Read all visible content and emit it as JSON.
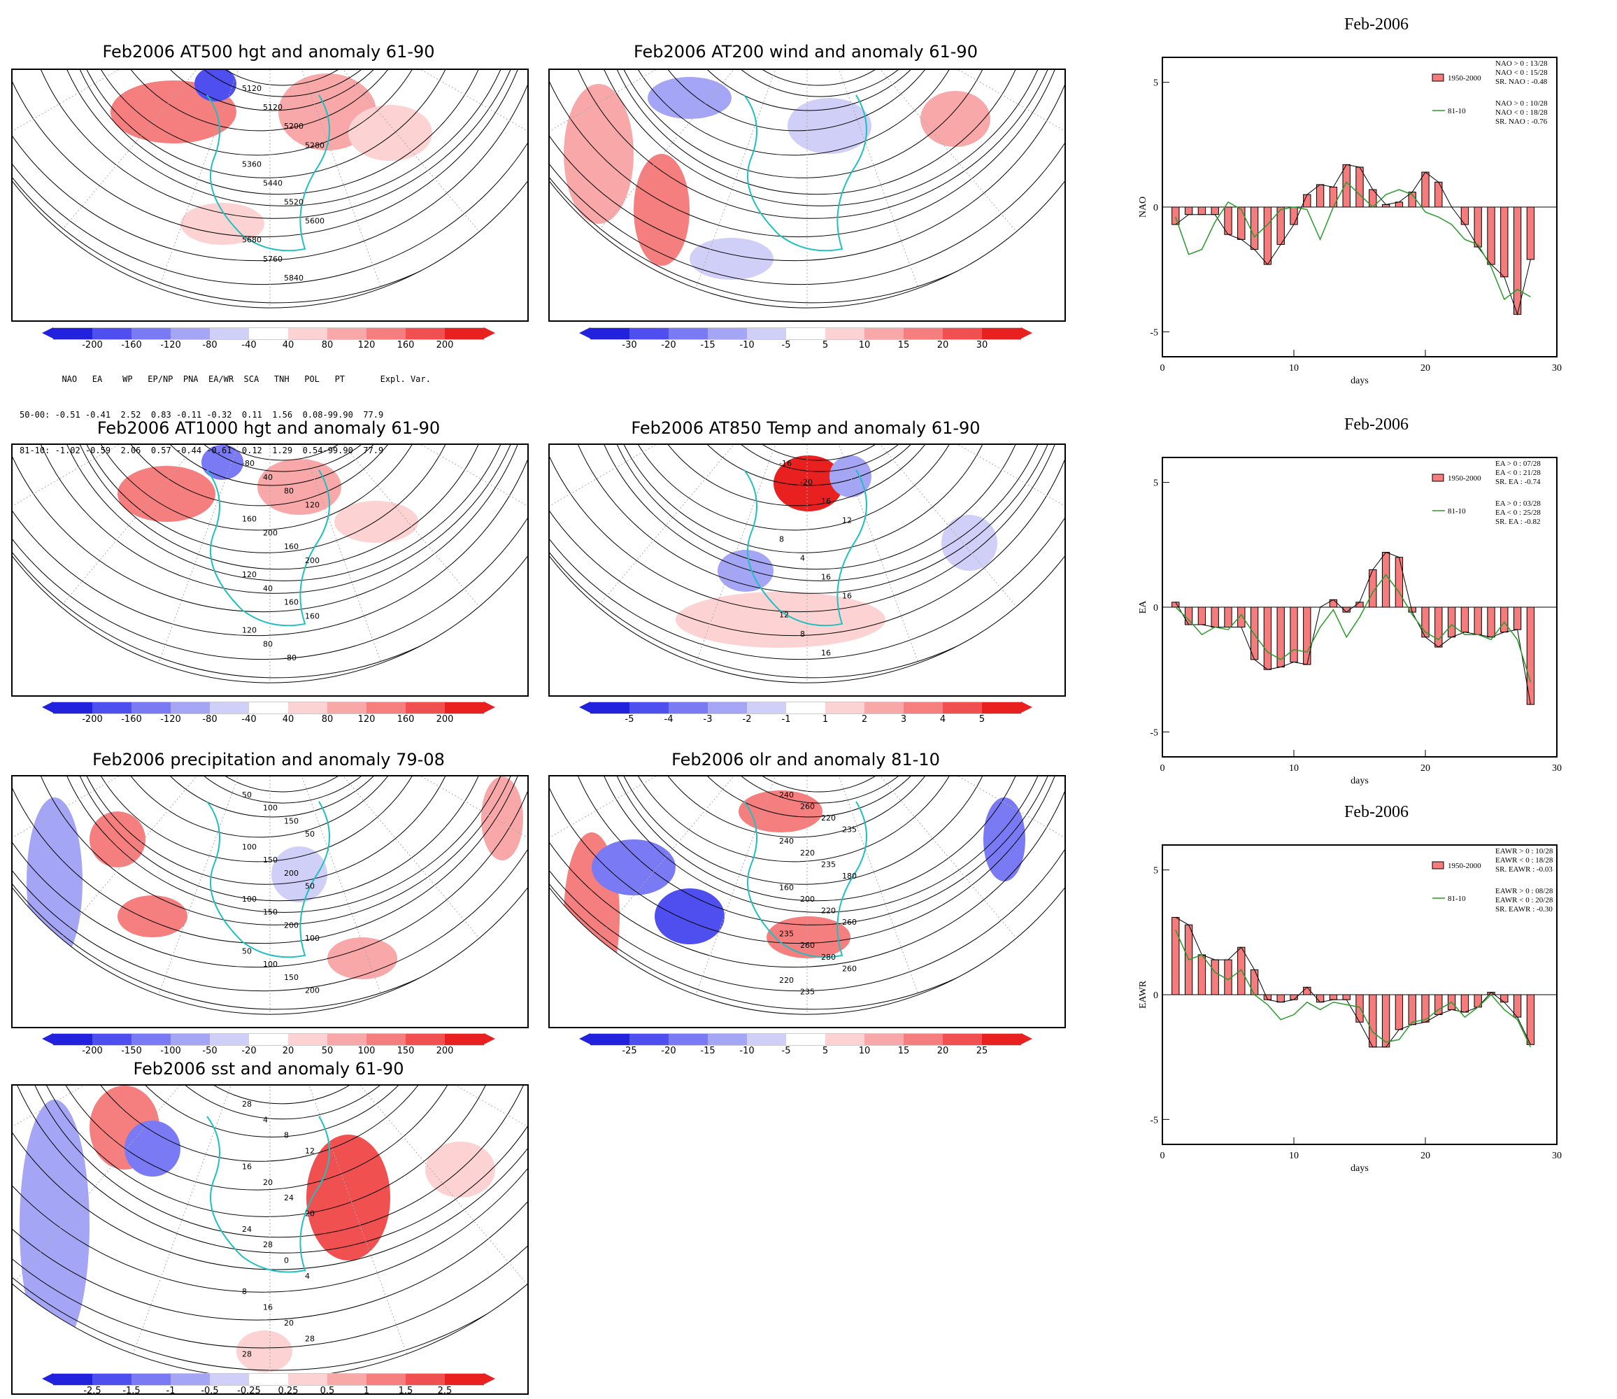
{
  "maps": [
    {
      "title": "Feb2006 AT500 hgt and anomaly 61-90",
      "contour_labels": [
        "5120",
        "5120",
        "5200",
        "5280",
        "5360",
        "5440",
        "5520",
        "5600",
        "5680",
        "5760",
        "5840"
      ],
      "colorbar": {
        "labels": [
          "-200",
          "-160",
          "-120",
          "-80",
          "-40",
          "40",
          "80",
          "120",
          "160",
          "200"
        ],
        "colors": [
          "#2222dd",
          "#4f4ff0",
          "#7a7af5",
          "#a5a5f5",
          "#cfcff8",
          "#ffffff",
          "#fcd2d2",
          "#f8a8a8",
          "#f57e7e",
          "#f05050",
          "#e82020"
        ]
      }
    },
    {
      "title": "Feb2006 AT200 wind and anomaly 61-90",
      "contour_labels": [],
      "colorbar": {
        "labels": [
          "-30",
          "-20",
          "-15",
          "-10",
          "-5",
          "5",
          "10",
          "15",
          "20",
          "30"
        ],
        "colors": [
          "#2222dd",
          "#4f4ff0",
          "#7a7af5",
          "#a5a5f5",
          "#cfcff8",
          "#ffffff",
          "#fcd2d2",
          "#f8a8a8",
          "#f57e7e",
          "#f05050",
          "#e82020"
        ]
      }
    },
    {
      "title": "Feb2006 AT1000 hgt and anomaly 61-90",
      "contour_labels": [
        "-80",
        "40",
        "80",
        "120",
        "160",
        "200",
        "160",
        "200",
        "120",
        "40",
        "160",
        "160",
        "120",
        "80",
        "-80"
      ],
      "colorbar": {
        "labels": [
          "-200",
          "-160",
          "-120",
          "-80",
          "-40",
          "40",
          "80",
          "120",
          "160",
          "200"
        ],
        "colors": [
          "#2222dd",
          "#4f4ff0",
          "#7a7af5",
          "#a5a5f5",
          "#cfcff8",
          "#ffffff",
          "#fcd2d2",
          "#f8a8a8",
          "#f57e7e",
          "#f05050",
          "#e82020"
        ]
      }
    },
    {
      "title": "Feb2006 AT850 Temp and anomaly 61-90",
      "contour_labels": [
        "-16",
        "-20",
        "16",
        "12",
        "8",
        "4",
        "16",
        "16",
        "12",
        "8",
        "16"
      ],
      "colorbar": {
        "labels": [
          "-5",
          "-4",
          "-3",
          "-2",
          "-1",
          "1",
          "2",
          "3",
          "4",
          "5"
        ],
        "colors": [
          "#2222dd",
          "#4f4ff0",
          "#7a7af5",
          "#a5a5f5",
          "#cfcff8",
          "#ffffff",
          "#fcd2d2",
          "#f8a8a8",
          "#f57e7e",
          "#f05050",
          "#e82020"
        ]
      }
    },
    {
      "title": "Feb2006 precipitation and anomaly 79-08",
      "contour_labels": [
        "50",
        "100",
        "150",
        "50",
        "100",
        "150",
        "200",
        "50",
        "100",
        "150",
        "200",
        "100",
        "50",
        "100",
        "150",
        "200"
      ],
      "colorbar": {
        "labels": [
          "-200",
          "-150",
          "-100",
          "-50",
          "-20",
          "20",
          "50",
          "100",
          "150",
          "200"
        ],
        "colors": [
          "#2222dd",
          "#4f4ff0",
          "#7a7af5",
          "#a5a5f5",
          "#cfcff8",
          "#ffffff",
          "#fcd2d2",
          "#f8a8a8",
          "#f57e7e",
          "#f05050",
          "#e82020"
        ]
      }
    },
    {
      "title": "Feb2006 olr and anomaly 81-10",
      "contour_labels": [
        "240",
        "260",
        "220",
        "235",
        "240",
        "220",
        "235",
        "180",
        "160",
        "200",
        "220",
        "260",
        "235",
        "260",
        "280",
        "260",
        "220",
        "235"
      ],
      "colorbar": {
        "labels": [
          "-25",
          "-20",
          "-15",
          "-10",
          "-5",
          "5",
          "10",
          "15",
          "20",
          "25"
        ],
        "colors": [
          "#2222dd",
          "#4f4ff0",
          "#7a7af5",
          "#a5a5f5",
          "#cfcff8",
          "#ffffff",
          "#fcd2d2",
          "#f8a8a8",
          "#f57e7e",
          "#f05050",
          "#e82020"
        ]
      }
    },
    {
      "title": "Feb2006 sst and anomaly 61-90",
      "contour_labels": [
        "28",
        "4",
        "8",
        "12",
        "16",
        "20",
        "24",
        "20",
        "24",
        "28",
        "0",
        "4",
        "8",
        "16",
        "20",
        "28",
        "28"
      ],
      "colorbar": {
        "labels": [
          "-2.5",
          "-1.5",
          "-1",
          "-0.5",
          "-0.25",
          "0.25",
          "0.5",
          "1",
          "1.5",
          "2.5"
        ],
        "colors": [
          "#2222dd",
          "#4f4ff0",
          "#7a7af5",
          "#a5a5f5",
          "#cfcff8",
          "#ffffff",
          "#fcd2d2",
          "#f8a8a8",
          "#f57e7e",
          "#f05050",
          "#e82020"
        ]
      }
    }
  ],
  "index_table": {
    "header": "  NAO   EA    WP   EP/NP  PNA  EA/WR  SCA   TNH   POL   PT       Expl. Var.",
    "rows": [
      "50-00: -0.51 -0.41  2.52  0.83 -0.11 -0.32  0.11  1.56  0.08-99.90  77.9",
      "81-10: -1.02 -0.59  2.06  0.57 -0.44 -0.61  0.12  1.29  0.54-99.90  77.9"
    ]
  },
  "chart_data": [
    {
      "type": "bar",
      "title": "Feb-2006",
      "xlabel": "days",
      "ylabel": "NAO",
      "xlim": [
        0,
        30
      ],
      "ylim": [
        -6,
        6
      ],
      "xticks": [
        "0",
        "10",
        "20",
        "30"
      ],
      "yticks": [
        "5",
        "0",
        "-5"
      ],
      "legend": [
        "NAO > 0 : 13/28",
        "NAO < 0 : 15/28",
        "SR. NAO : -0.48",
        "NAO > 0 : 10/28",
        "NAO < 0 : 18/28",
        "SR. NAO : -0.76"
      ],
      "series": [
        {
          "name": "1950-2000",
          "color": "#f47c7c",
          "x": [
            1,
            2,
            3,
            4,
            5,
            6,
            7,
            8,
            9,
            10,
            11,
            12,
            13,
            14,
            15,
            16,
            17,
            18,
            19,
            20,
            21,
            22,
            23,
            24,
            25,
            26,
            27,
            28
          ],
          "values": [
            -0.7,
            -0.3,
            -0.3,
            -0.3,
            -1.1,
            -1.3,
            -1.7,
            -2.3,
            -1.5,
            -0.7,
            0.5,
            0.9,
            0.8,
            1.7,
            1.6,
            0.7,
            0.1,
            0.2,
            0.6,
            1.4,
            1.0,
            0.0,
            -0.7,
            -1.6,
            -2.3,
            -2.8,
            -4.3,
            -2.1
          ]
        },
        {
          "name": "81-10",
          "color": "#2a9a2a",
          "x": [
            1,
            2,
            3,
            4,
            5,
            6,
            7,
            8,
            9,
            10,
            11,
            12,
            13,
            14,
            15,
            16,
            17,
            18,
            19,
            20,
            21,
            22,
            23,
            24,
            25,
            26,
            27,
            28
          ],
          "values": [
            -0.4,
            -1.9,
            -1.7,
            -0.6,
            0.2,
            -0.1,
            -1.2,
            -0.7,
            -0.1,
            0.0,
            -0.1,
            -1.3,
            0.0,
            1.0,
            0.5,
            0.0,
            0.5,
            0.7,
            0.5,
            -0.2,
            -0.4,
            -0.7,
            -1.3,
            -1.5,
            -2.4,
            -3.7,
            -3.3,
            -3.6
          ]
        }
      ]
    },
    {
      "type": "bar",
      "title": "Feb-2006",
      "xlabel": "days",
      "ylabel": "EA",
      "xlim": [
        0,
        30
      ],
      "ylim": [
        -6,
        6
      ],
      "xticks": [
        "0",
        "10",
        "20",
        "30"
      ],
      "yticks": [
        "5",
        "0",
        "-5"
      ],
      "legend": [
        "EA > 0 : 07/28",
        "EA < 0 : 21/28",
        "SR. EA : -0.74",
        "EA > 0 : 03/28",
        "EA < 0 : 25/28",
        "SR. EA : -0.82"
      ],
      "series": [
        {
          "name": "1950-2000",
          "color": "#f47c7c",
          "x": [
            1,
            2,
            3,
            4,
            5,
            6,
            7,
            8,
            9,
            10,
            11,
            12,
            13,
            14,
            15,
            16,
            17,
            18,
            19,
            20,
            21,
            22,
            23,
            24,
            25,
            26,
            27,
            28
          ],
          "values": [
            0.2,
            -0.7,
            -0.7,
            -0.8,
            -0.8,
            -0.8,
            -2.1,
            -2.5,
            -2.4,
            -2.2,
            -2.3,
            0.0,
            0.3,
            -0.2,
            0.2,
            1.5,
            2.2,
            2.0,
            -0.2,
            -1.2,
            -1.6,
            -1.2,
            -1.0,
            -1.1,
            -1.2,
            -1.0,
            -0.9,
            -3.9
          ]
        },
        {
          "name": "81-10",
          "color": "#2a9a2a",
          "x": [
            1,
            2,
            3,
            4,
            5,
            6,
            7,
            8,
            9,
            10,
            11,
            12,
            13,
            14,
            15,
            16,
            17,
            18,
            19,
            20,
            21,
            22,
            23,
            24,
            25,
            26,
            27,
            28
          ],
          "values": [
            0.0,
            -0.5,
            -1.1,
            -0.8,
            -0.9,
            -0.3,
            -1.1,
            -1.8,
            -2.1,
            -1.7,
            -1.8,
            -0.8,
            -0.1,
            -1.2,
            -0.4,
            0.6,
            1.3,
            0.6,
            -0.3,
            -1.0,
            -1.3,
            -0.7,
            -1.1,
            -1.1,
            -1.3,
            -0.6,
            -1.3,
            -3.0
          ]
        }
      ]
    },
    {
      "type": "bar",
      "title": "Feb-2006",
      "xlabel": "days",
      "ylabel": "EAWR",
      "xlim": [
        0,
        30
      ],
      "ylim": [
        -6,
        6
      ],
      "xticks": [
        "0",
        "10",
        "20",
        "30"
      ],
      "yticks": [
        "5",
        "0",
        "-5"
      ],
      "legend": [
        "EAWR > 0 : 10/28",
        "EAWR < 0 : 18/28",
        "SR. EAWR : -0.03",
        "EAWR > 0 : 08/28",
        "EAWR < 0 : 20/28",
        "SR. EAWR : -0.30"
      ],
      "series": [
        {
          "name": "1950-2000",
          "color": "#f47c7c",
          "x": [
            1,
            2,
            3,
            4,
            5,
            6,
            7,
            8,
            9,
            10,
            11,
            12,
            13,
            14,
            15,
            16,
            17,
            18,
            19,
            20,
            21,
            22,
            23,
            24,
            25,
            26,
            27,
            28
          ],
          "values": [
            3.1,
            2.8,
            1.6,
            1.4,
            1.4,
            1.9,
            1.0,
            -0.2,
            -0.3,
            -0.2,
            0.3,
            -0.3,
            -0.2,
            -0.2,
            -1.1,
            -2.1,
            -2.1,
            -1.4,
            -1.2,
            -1.1,
            -0.8,
            -0.6,
            -0.7,
            -0.5,
            0.1,
            -0.3,
            -0.9,
            -2.0
          ]
        },
        {
          "name": "81-10",
          "color": "#2a9a2a",
          "x": [
            1,
            2,
            3,
            4,
            5,
            6,
            7,
            8,
            9,
            10,
            11,
            12,
            13,
            14,
            15,
            16,
            17,
            18,
            19,
            20,
            21,
            22,
            23,
            24,
            25,
            26,
            27,
            28
          ],
          "values": [
            2.6,
            1.4,
            1.6,
            0.9,
            0.6,
            1.0,
            0.0,
            -0.4,
            -1.0,
            -0.8,
            -0.3,
            -0.6,
            -0.3,
            -0.4,
            -0.5,
            -1.5,
            -1.9,
            -1.8,
            -1.1,
            -1.0,
            -0.6,
            -0.3,
            -0.9,
            -0.5,
            0.0,
            -0.6,
            -1.0,
            -2.1
          ]
        }
      ]
    }
  ]
}
